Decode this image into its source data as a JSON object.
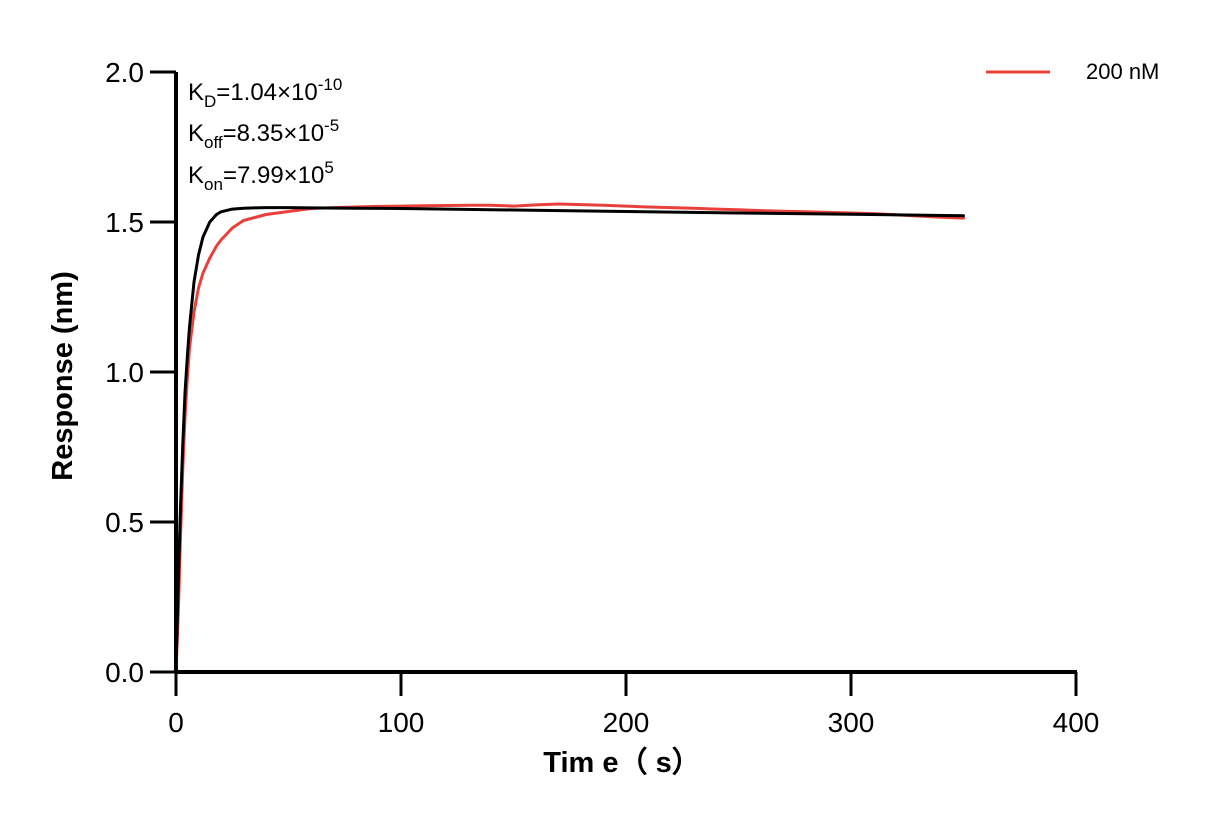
{
  "chart_data": {
    "type": "line",
    "title": "",
    "xlabel": "Tim e（ s）",
    "ylabel": "Response (nm)",
    "xlim": [
      0,
      400
    ],
    "ylim": [
      0,
      2.0
    ],
    "x_ticks": [
      "0",
      "100",
      "200",
      "300",
      "400"
    ],
    "y_ticks": [
      "0.0",
      "0.5",
      "1.0",
      "1.5",
      "2.0"
    ],
    "grid": false,
    "legend_position": "top-right",
    "annotations": {
      "kd": {
        "label": "K",
        "sub": "D",
        "value": "=1.04×10",
        "exp": "-10"
      },
      "koff": {
        "label": "K",
        "sub": "off",
        "value": "=8.35×10",
        "exp": "-5"
      },
      "kon": {
        "label": "K",
        "sub": "on",
        "value": "=7.99×10",
        "exp": "5"
      }
    },
    "series": [
      {
        "name": "200 nM",
        "color": "#e8413c",
        "x": [
          0,
          1,
          2,
          3,
          4,
          5,
          6,
          8,
          10,
          12,
          15,
          18,
          20,
          25,
          30,
          35,
          40,
          50,
          60,
          70,
          80,
          90,
          100,
          110,
          120,
          130,
          140,
          150,
          160,
          170,
          180,
          190,
          200,
          210,
          220,
          230,
          240,
          250,
          260,
          270,
          280,
          290,
          300,
          310,
          320,
          330,
          340,
          350
        ],
        "values": [
          0.0,
          0.2,
          0.45,
          0.68,
          0.85,
          0.98,
          1.08,
          1.2,
          1.28,
          1.33,
          1.38,
          1.42,
          1.44,
          1.48,
          1.505,
          1.515,
          1.525,
          1.535,
          1.545,
          1.548,
          1.55,
          1.552,
          1.553,
          1.554,
          1.555,
          1.556,
          1.556,
          1.553,
          1.557,
          1.56,
          1.558,
          1.556,
          1.553,
          1.55,
          1.548,
          1.546,
          1.543,
          1.541,
          1.538,
          1.536,
          1.534,
          1.532,
          1.53,
          1.528,
          1.524,
          1.52,
          1.516,
          1.513
        ]
      },
      {
        "name": "",
        "color": "#000000",
        "x": [
          0,
          1,
          2,
          3,
          4,
          5,
          6,
          8,
          10,
          12,
          15,
          18,
          20,
          25,
          30,
          35,
          40,
          50,
          60,
          80,
          100,
          150,
          200,
          250,
          300,
          350
        ],
        "values": [
          0.0,
          0.3,
          0.55,
          0.76,
          0.93,
          1.05,
          1.15,
          1.3,
          1.39,
          1.45,
          1.5,
          1.525,
          1.534,
          1.543,
          1.546,
          1.547,
          1.548,
          1.548,
          1.547,
          1.546,
          1.545,
          1.54,
          1.535,
          1.53,
          1.526,
          1.521
        ]
      }
    ]
  }
}
